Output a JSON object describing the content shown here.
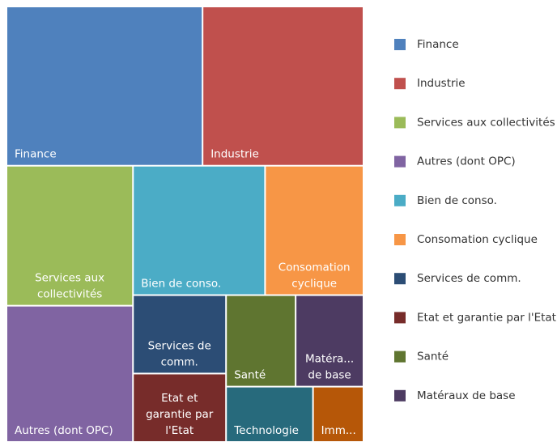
{
  "chart_data": {
    "type": "treemap",
    "labels": [
      "Finance",
      "Industrie",
      "Services aux\ncollectivités",
      "Autres (dont OPC)",
      "Bien de conso.",
      "Consomation\ncyclique",
      "Services de\ncomm.",
      "Etat et\ngarantie par\nl'Etat",
      "Santé",
      "Matéra...\nde base",
      "Technologie",
      "Imm..."
    ],
    "values": [
      20.1,
      16.5,
      11.4,
      11.1,
      11.0,
      8.2,
      4.7,
      4.1,
      4.1,
      4.0,
      3.1,
      1.8
    ],
    "colors": [
      "#4f81bd",
      "#c0504d",
      "#9bbb59",
      "#8064a2",
      "#4bacc6",
      "#f79646",
      "#2c4d75",
      "#772c2a",
      "#5f7530",
      "#4d3b62",
      "#276a7c",
      "#b65708"
    ],
    "legend": [
      "Finance",
      "Industrie",
      "Services aux collectivités",
      "Autres (dont OPC)",
      "Bien de conso.",
      "Consomation cyclique",
      "Services de comm.",
      "Etat et garantie par l'Etat",
      "Santé",
      "Matéraux de base"
    ]
  }
}
